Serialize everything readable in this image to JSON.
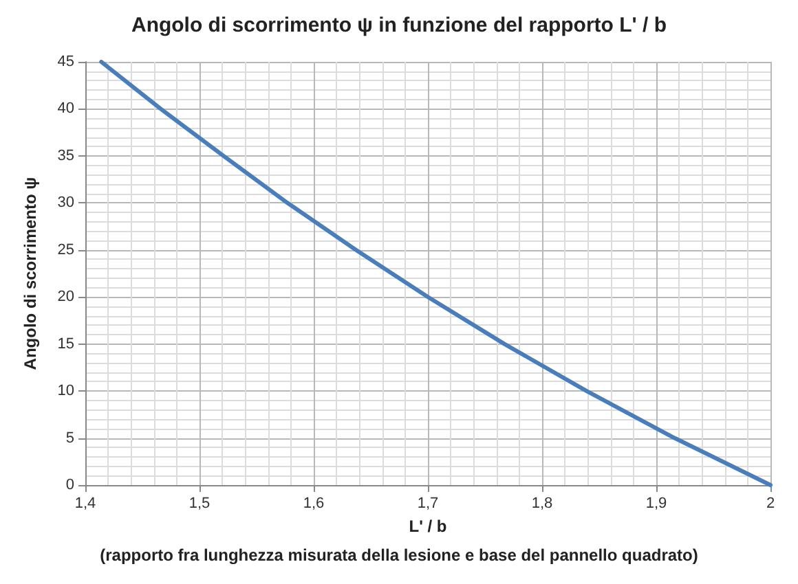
{
  "chart_data": {
    "type": "line",
    "title": "Angolo di scorrimento ψ in funzione del rapporto L' / b",
    "xlabel": "L' / b",
    "ylabel": "Angolo di scorrimento ψ",
    "annotations": [
      "(rapporto fra lunghezza misurata della lesione e base del pannello quadrato)"
    ],
    "x": [
      1.414,
      1.466,
      1.521,
      1.577,
      1.637,
      1.7,
      1.767,
      1.839,
      1.916,
      2.0
    ],
    "series": [
      {
        "color": "#4a7ebb",
        "values": [
          45,
          40,
          35,
          30,
          25,
          20,
          15,
          10,
          5,
          0
        ]
      }
    ],
    "xlim": [
      1.4,
      2
    ],
    "xticks": [
      {
        "value": 1.4,
        "label": "1,4"
      },
      {
        "value": 1.5,
        "label": "1,5"
      },
      {
        "value": 1.6,
        "label": "1,6"
      },
      {
        "value": 1.7,
        "label": "1,7"
      },
      {
        "value": 1.8,
        "label": "1,8"
      },
      {
        "value": 1.9,
        "label": "1,9"
      },
      {
        "value": 2,
        "label": "2"
      }
    ],
    "ylim": [
      0,
      45
    ],
    "yticks": [
      0,
      5,
      10,
      15,
      20,
      25,
      30,
      35,
      40,
      45
    ],
    "grid": true,
    "marker": "none",
    "line_style": "solid"
  }
}
